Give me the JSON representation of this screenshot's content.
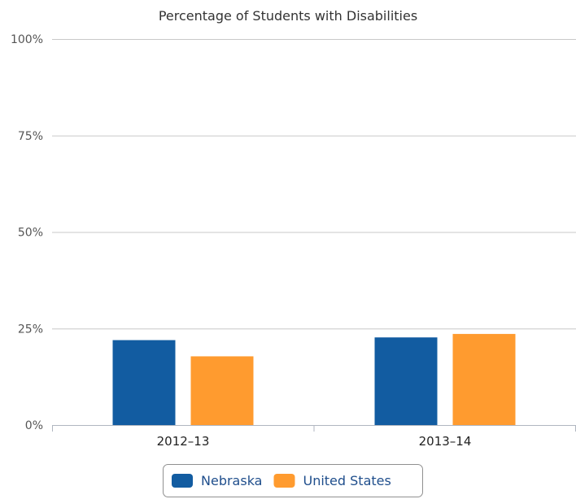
{
  "chart_data": {
    "type": "bar",
    "title": "Percentage of Students with Disabilities",
    "categories": [
      "2012–13",
      "2013–14"
    ],
    "series": [
      {
        "name": "Nebraska",
        "values": [
          22,
          22.7
        ],
        "color": "#125ca1"
      },
      {
        "name": "United States",
        "values": [
          17.8,
          23.6
        ],
        "color": "#ff9b2f"
      }
    ],
    "ylim": [
      0,
      100
    ],
    "y_ticks": [
      0,
      25,
      50,
      75,
      100
    ],
    "y_tick_labels": [
      "0%",
      "25%",
      "50%",
      "75%",
      "100%"
    ],
    "grid": true,
    "legend_position": "bottom-center"
  }
}
